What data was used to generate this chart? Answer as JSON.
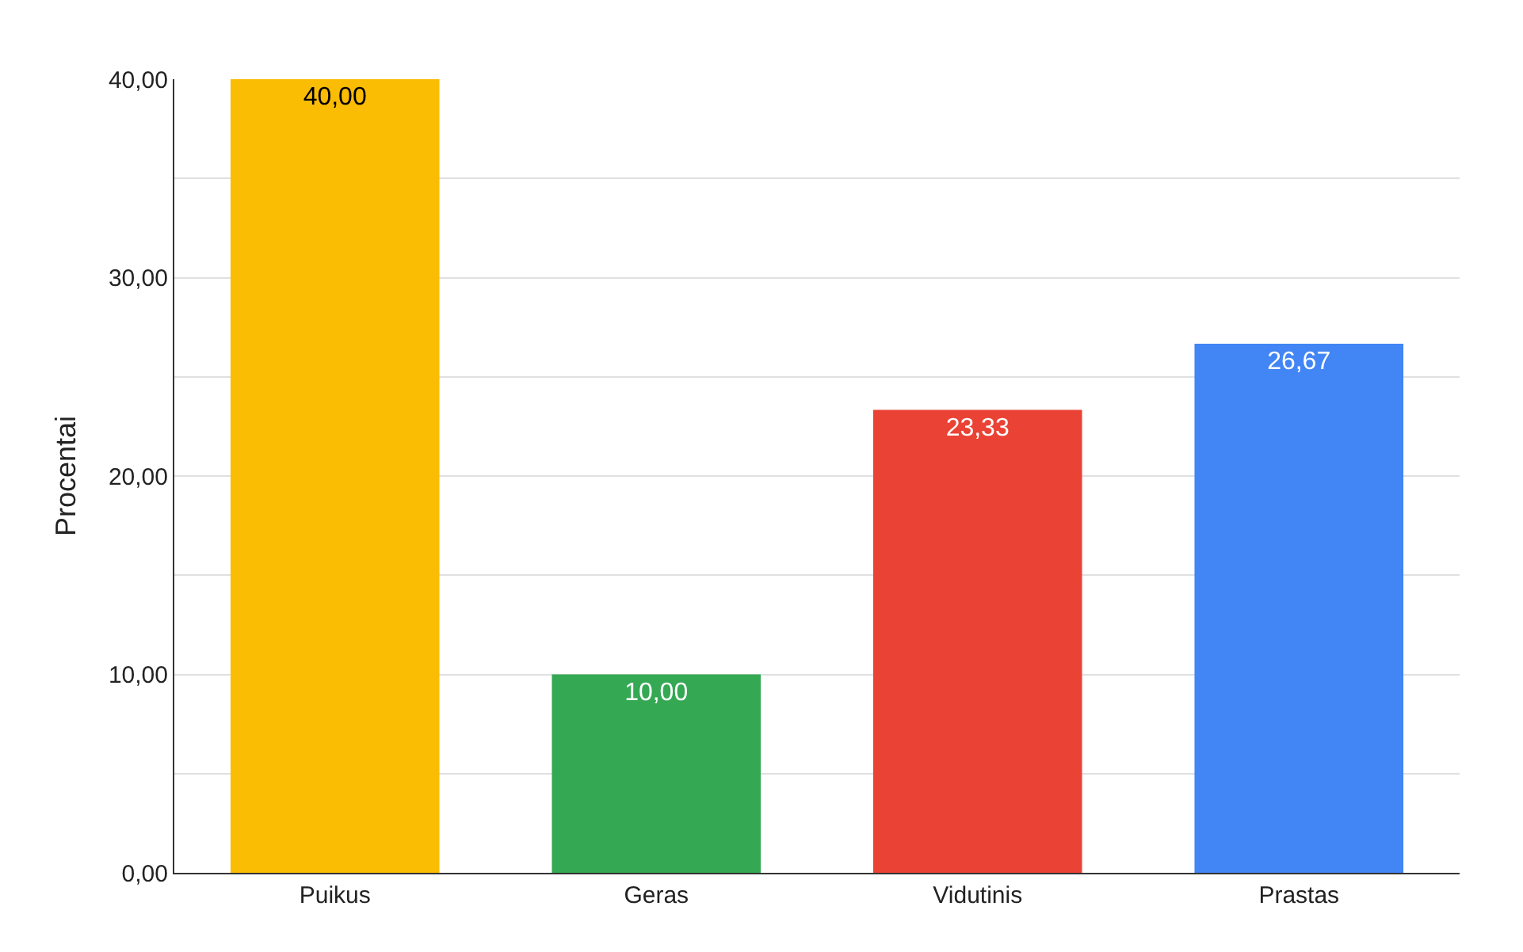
{
  "chart_data": {
    "type": "bar",
    "ylabel": "Procentai",
    "categories": [
      "Puikus",
      "Geras",
      "Vidutinis",
      "Prastas"
    ],
    "values": [
      40,
      10,
      23.33,
      26.67
    ],
    "colors": [
      "#fbbc04",
      "#34a853",
      "#ea4335",
      "#4285f4"
    ],
    "value_labels": [
      "40,00",
      "10,00",
      "23,33",
      "26,67"
    ],
    "ylim": [
      0,
      40
    ],
    "yticks": [
      {
        "value": 0,
        "label": "0,00"
      },
      {
        "value": 5,
        "label": null
      },
      {
        "value": 10,
        "label": "10,00"
      },
      {
        "value": 15,
        "label": null
      },
      {
        "value": 20,
        "label": "20,00"
      },
      {
        "value": 25,
        "label": null
      },
      {
        "value": 30,
        "label": "30,00"
      },
      {
        "value": 35,
        "label": null
      },
      {
        "value": 40,
        "label": "40,00"
      }
    ],
    "grid": "y",
    "legend": false
  }
}
